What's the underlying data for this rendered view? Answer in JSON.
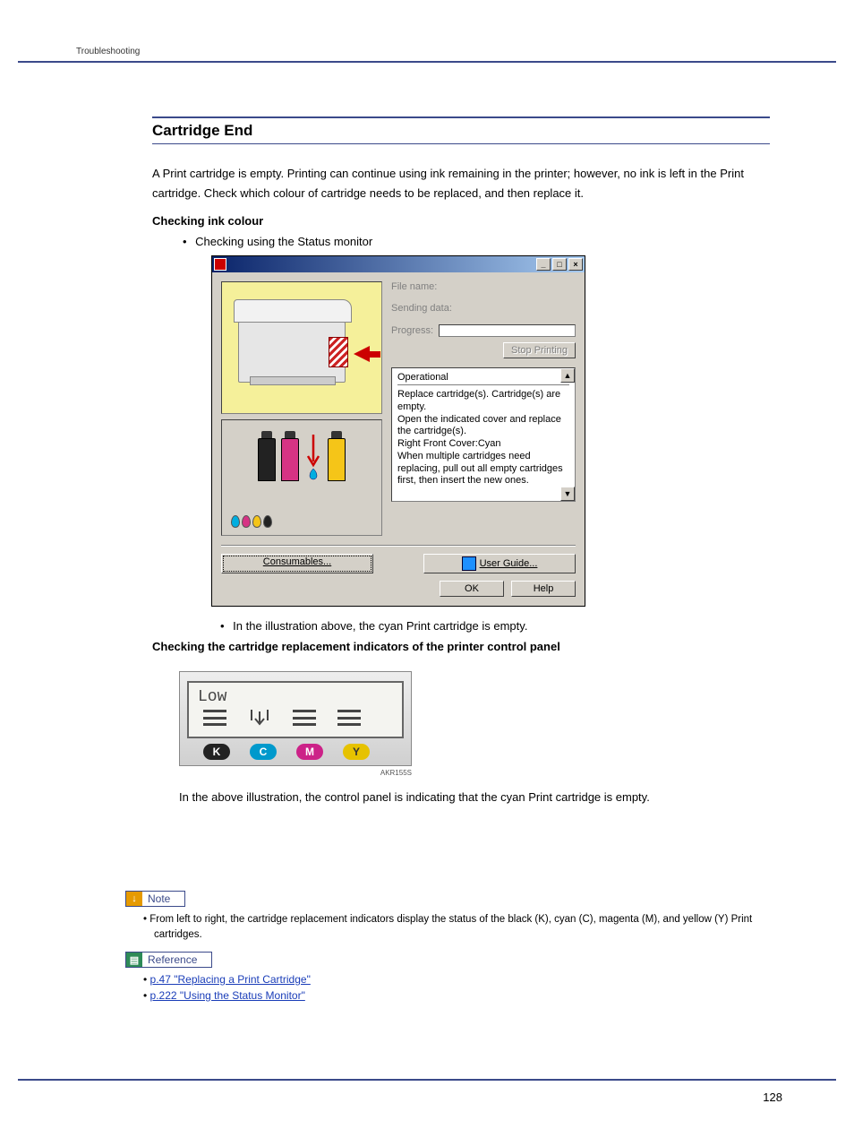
{
  "header": {
    "breadcrumb": "Troubleshooting"
  },
  "section": {
    "title": "Cartridge End",
    "intro": "A Print cartridge is empty. Printing can continue using ink remaining in the printer; however, no ink is left in the Print cartridge. Check which colour of cartridge needs to be replaced, and then replace it.",
    "sub1": "Checking ink colour",
    "bullet1": "Checking using the Status monitor",
    "caption1": "In the illustration above, the cyan Print cartridge is empty.",
    "sub2": "Checking the cartridge replacement indicators of the printer control panel",
    "caption2": "In the above illustration, the control panel is indicating that the cyan Print cartridge is empty."
  },
  "dialog": {
    "file_name_label": "File name:",
    "sending_data_label": "Sending data:",
    "progress_label": "Progress:",
    "stop_printing": "Stop Printing",
    "status_title": "Operational",
    "status_text": "Replace cartridge(s). Cartridge(s) are empty.\nOpen the indicated cover and replace the cartridge(s).\nRight Front Cover:Cyan\nWhen multiple cartridges need replacing, pull out all empty cartridges first, then insert the new ones.",
    "consumables": "Consumables...",
    "user_guide": "User Guide...",
    "ok": "OK",
    "help": "Help",
    "cartridges": [
      {
        "type": "cart",
        "fill": "#222222"
      },
      {
        "type": "cart",
        "fill": "#d63384"
      },
      {
        "type": "replace",
        "color": "#00aee0"
      },
      {
        "type": "cart",
        "fill": "#f5c518"
      }
    ],
    "legend_colors": [
      "#00aee0",
      "#d63384",
      "#f5c518",
      "#222222"
    ]
  },
  "panel": {
    "lcd_text": "Low",
    "code": "AKR155S",
    "labels": [
      {
        "letter": "K",
        "bg": "#222222",
        "fg": "#ffffff"
      },
      {
        "letter": "C",
        "bg": "#0099cc",
        "fg": "#ffffff"
      },
      {
        "letter": "M",
        "bg": "#cc2288",
        "fg": "#ffffff"
      },
      {
        "letter": "Y",
        "bg": "#e6c200",
        "fg": "#333333"
      }
    ]
  },
  "note": {
    "label": "Note",
    "text": "From left to right, the cartridge replacement indicators display the status of the black (K), cyan (C), magenta (M), and yellow (Y) Print cartridges."
  },
  "reference": {
    "label": "Reference",
    "links": [
      "p.47 \"Replacing a Print Cartridge\"",
      "p.222 \"Using the Status Monitor\""
    ]
  },
  "page_number": "128",
  "colors": {
    "rule": "#3b4a8a",
    "dialog_bg": "#d4d0c8",
    "illus_bg": "#f5f09a"
  }
}
